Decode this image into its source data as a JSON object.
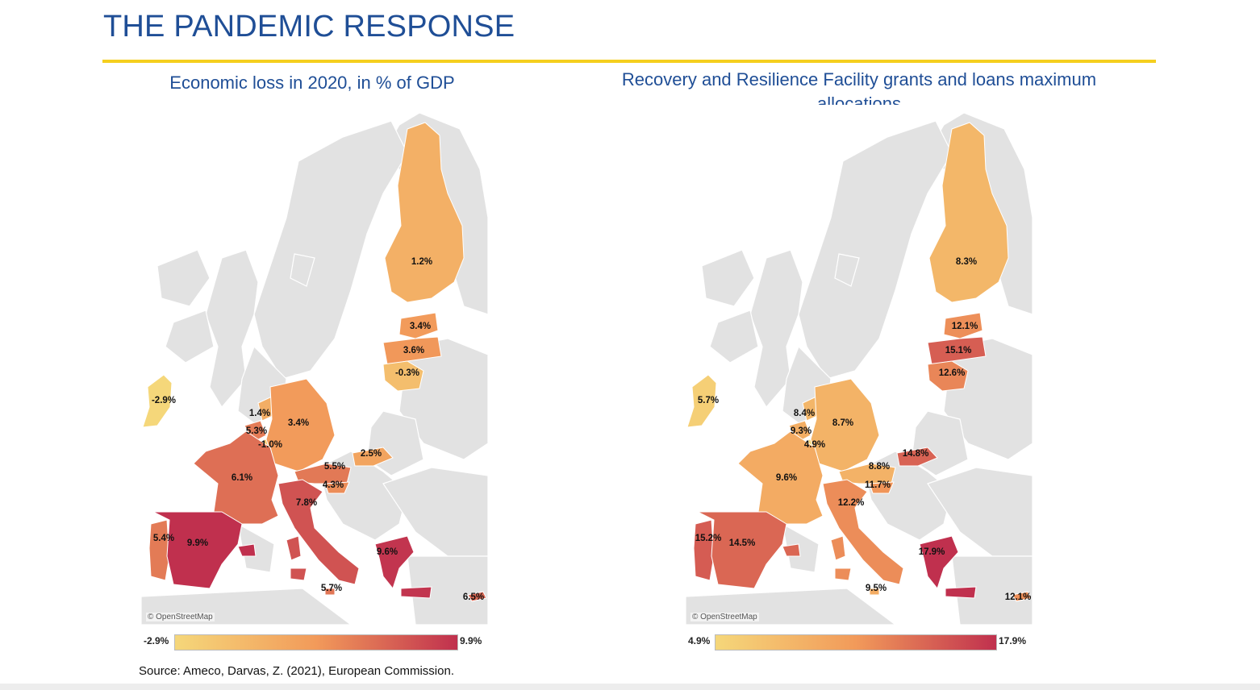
{
  "page": {
    "title": "THE PANDEMIC RESPONSE",
    "source": "Source: Ameco, Darvas, Z. (2021), European Commission."
  },
  "colors": {
    "accent_rule": "#f5cf1f",
    "title_blue": "#1f4e96",
    "scale_low": "#f5d77a",
    "scale_mid": "#f29a5a",
    "scale_high": "#c0304e",
    "land": "#e2e2e2"
  },
  "maps": [
    {
      "title": "Economic loss in 2020, in % of GDP",
      "attribution": "© OpenStreetMap",
      "legend": {
        "min_label": "-2.9%",
        "max_label": "9.9%",
        "min": -2.9,
        "max": 9.9
      },
      "regions": {
        "finland": {
          "label": "1.2%",
          "value": 1.2
        },
        "estonia": {
          "label": "3.4%",
          "value": 3.4
        },
        "latvia": {
          "label": "3.6%",
          "value": 3.6
        },
        "lithuania": {
          "label": "-0.3%",
          "value": -0.3
        },
        "ireland": {
          "label": "-2.9%",
          "value": -2.9
        },
        "netherlands": {
          "label": "1.4%",
          "value": 1.4
        },
        "belgium": {
          "label": "5.3%",
          "value": 5.3
        },
        "luxembourg": {
          "label": "-1.0%",
          "value": -1.0
        },
        "germany": {
          "label": "3.4%",
          "value": 3.4
        },
        "france": {
          "label": "6.1%",
          "value": 6.1
        },
        "austria": {
          "label": "5.5%",
          "value": 5.5
        },
        "slovenia": {
          "label": "4.3%",
          "value": 4.3
        },
        "slovakia": {
          "label": "2.5%",
          "value": 2.5
        },
        "italy": {
          "label": "7.8%",
          "value": 7.8
        },
        "portugal": {
          "label": "5.4%",
          "value": 5.4
        },
        "spain": {
          "label": "9.9%",
          "value": 9.9
        },
        "greece": {
          "label": "9.6%",
          "value": 9.6
        },
        "malta": {
          "label": "5.7%",
          "value": 5.7
        },
        "cyprus": {
          "label": "6.5%",
          "value": 6.5
        }
      }
    },
    {
      "title": "Recovery and Resilience Facility grants and loans maximum allocations",
      "attribution": "© OpenStreetMap",
      "legend": {
        "min_label": "4.9%",
        "max_label": "17.9%",
        "min": 4.9,
        "max": 17.9
      },
      "regions": {
        "finland": {
          "label": "8.3%",
          "value": 8.3
        },
        "estonia": {
          "label": "12.1%",
          "value": 12.1
        },
        "latvia": {
          "label": "15.1%",
          "value": 15.1
        },
        "lithuania": {
          "label": "12.6%",
          "value": 12.6
        },
        "ireland": {
          "label": "5.7%",
          "value": 5.7
        },
        "netherlands": {
          "label": "8.4%",
          "value": 8.4
        },
        "belgium": {
          "label": "9.3%",
          "value": 9.3
        },
        "luxembourg": {
          "label": "4.9%",
          "value": 4.9
        },
        "germany": {
          "label": "8.7%",
          "value": 8.7
        },
        "france": {
          "label": "9.6%",
          "value": 9.6
        },
        "austria": {
          "label": "8.8%",
          "value": 8.8
        },
        "slovenia": {
          "label": "11.7%",
          "value": 11.7
        },
        "slovakia": {
          "label": "14.8%",
          "value": 14.8
        },
        "italy": {
          "label": "12.2%",
          "value": 12.2
        },
        "portugal": {
          "label": "15.2%",
          "value": 15.2
        },
        "spain": {
          "label": "14.5%",
          "value": 14.5
        },
        "greece": {
          "label": "17.9%",
          "value": 17.9
        },
        "malta": {
          "label": "9.5%",
          "value": 9.5
        },
        "cyprus": {
          "label": "12.1%",
          "value": 12.1
        }
      }
    }
  ]
}
